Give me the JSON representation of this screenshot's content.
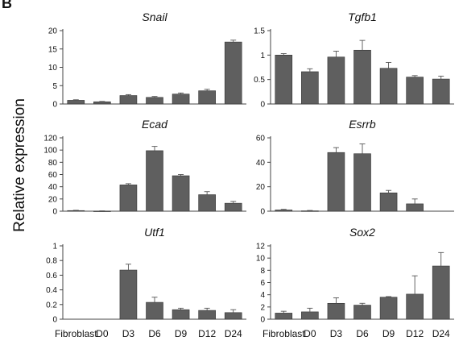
{
  "figure": {
    "panel_letter": "B",
    "ylabel": "Relative expression"
  },
  "chart_data": [
    {
      "type": "bar",
      "title": "Snail",
      "categories": [
        "Fibroblast",
        "D0",
        "D3",
        "D6",
        "D9",
        "D12",
        "D24"
      ],
      "values": [
        1.0,
        0.6,
        2.3,
        1.8,
        2.7,
        3.6,
        16.9
      ],
      "errors": [
        0.15,
        0.1,
        0.25,
        0.25,
        0.3,
        0.4,
        0.5
      ],
      "ylim": [
        0,
        20
      ],
      "yticks": [
        "0",
        "5",
        "10",
        "15",
        "20"
      ],
      "ylabel": "Relative expression",
      "xlabel": ""
    },
    {
      "type": "bar",
      "title": "Tgfb1",
      "categories": [
        "Fibroblast",
        "D0",
        "D3",
        "D6",
        "D9",
        "D12",
        "D24"
      ],
      "values": [
        1.0,
        0.66,
        0.96,
        1.1,
        0.73,
        0.55,
        0.51
      ],
      "errors": [
        0.03,
        0.06,
        0.12,
        0.2,
        0.12,
        0.03,
        0.06
      ],
      "ylim": [
        0,
        1.5
      ],
      "yticks": [
        "0",
        "0.5",
        "1",
        "1.5"
      ],
      "ylabel": "Relative expression",
      "xlabel": ""
    },
    {
      "type": "bar",
      "title": "Ecad",
      "categories": [
        "Fibroblast",
        "D0",
        "D3",
        "D6",
        "D9",
        "D12",
        "D24"
      ],
      "values": [
        1.0,
        0.3,
        43,
        99,
        58,
        27,
        13
      ],
      "errors": [
        0.5,
        0.3,
        2,
        7,
        2,
        5,
        3
      ],
      "ylim": [
        0,
        120
      ],
      "yticks": [
        "0",
        "20",
        "40",
        "60",
        "80",
        "100",
        "120"
      ],
      "ylabel": "Relative expression",
      "xlabel": ""
    },
    {
      "type": "bar",
      "title": "Esrrb",
      "categories": [
        "Fibroblast",
        "D0",
        "D3",
        "D6",
        "D9",
        "D12",
        "D24"
      ],
      "values": [
        1.0,
        0.3,
        48,
        47,
        15,
        6,
        0
      ],
      "errors": [
        0.5,
        0.3,
        4,
        8,
        2,
        4,
        0
      ],
      "ylim": [
        0,
        60
      ],
      "yticks": [
        "0",
        "20",
        "40",
        "60"
      ],
      "ylabel": "Relative expression",
      "xlabel": ""
    },
    {
      "type": "bar",
      "title": "Utf1",
      "categories": [
        "Fibroblast",
        "D0",
        "D3",
        "D6",
        "D9",
        "D12",
        "D24"
      ],
      "values": [
        0,
        0,
        0.67,
        0.23,
        0.13,
        0.12,
        0.09
      ],
      "errors": [
        0,
        0,
        0.08,
        0.07,
        0.02,
        0.03,
        0.04
      ],
      "ylim": [
        0,
        1
      ],
      "yticks": [
        "0",
        "0.2",
        "0.4",
        "0.6",
        "0.8",
        "1"
      ],
      "ylabel": "Relative expression",
      "xlabel": ""
    },
    {
      "type": "bar",
      "title": "Sox2",
      "categories": [
        "Fibroblast",
        "D0",
        "D3",
        "D6",
        "D9",
        "D12",
        "D24"
      ],
      "values": [
        1.0,
        1.2,
        2.6,
        2.3,
        3.6,
        4.1,
        8.7
      ],
      "errors": [
        0.3,
        0.6,
        0.9,
        0.3,
        0.1,
        3.0,
        2.2
      ],
      "ylim": [
        0,
        12
      ],
      "yticks": [
        "0",
        "2",
        "4",
        "6",
        "8",
        "10",
        "12"
      ],
      "ylabel": "Relative expression",
      "xlabel": ""
    }
  ],
  "x_axis": {
    "categories": [
      "Fibroblast",
      "D0",
      "D3",
      "D6",
      "D9",
      "D12",
      "D24"
    ]
  },
  "colors": {
    "bar": "#5f5f5f",
    "bar_edge": "#333333",
    "axis": "#444444",
    "text": "#111111",
    "background": "#ffffff"
  }
}
